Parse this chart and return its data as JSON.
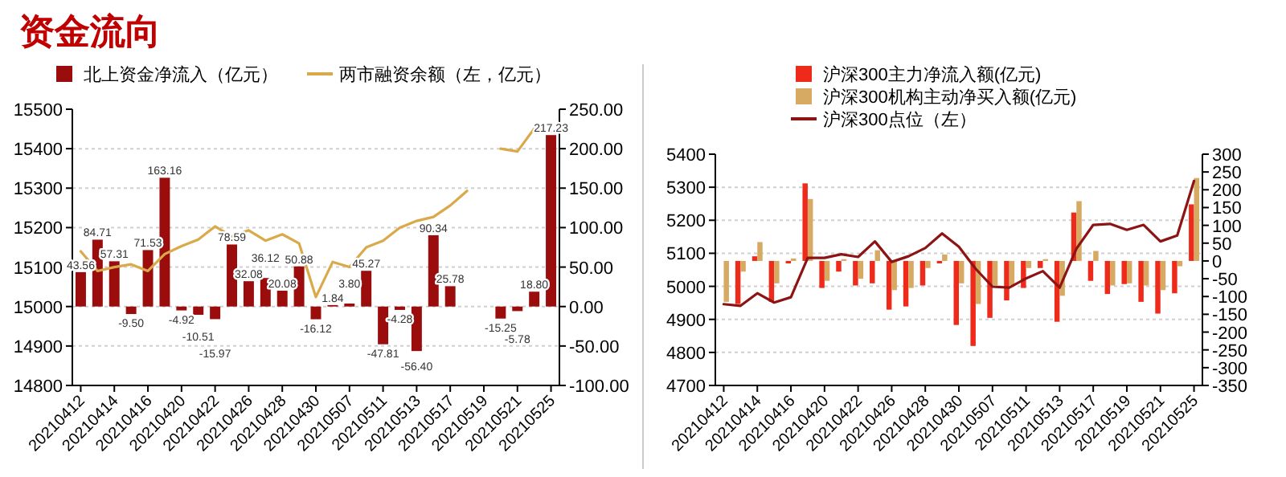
{
  "chart_data": [
    {
      "type": "bar",
      "title": "资金流向",
      "legend": "top",
      "grid": "y",
      "categories": [
        "20210412",
        null,
        "20210414",
        null,
        "20210416",
        null,
        "20210420",
        null,
        "20210422",
        null,
        "20210426",
        null,
        "20210428",
        null,
        "20210430",
        null,
        "20210507",
        null,
        "20210511",
        null,
        "20210513",
        null,
        "20210517",
        null,
        "20210519",
        null,
        "20210521",
        null,
        "20210525"
      ],
      "ylim": [
        14800,
        15500
      ],
      "yticks": [
        14800,
        14900,
        15000,
        15100,
        15200,
        15300,
        15400,
        15500
      ],
      "y2lim": [
        -100,
        250
      ],
      "y2ticks": [
        {
          "value": -100,
          "label": "-100.00"
        },
        {
          "value": -50,
          "label": "-50.00"
        },
        {
          "value": 0,
          "label": "0.00"
        },
        {
          "value": 50,
          "label": "50.00"
        },
        {
          "value": 100,
          "label": "100.00"
        },
        {
          "value": 150,
          "label": "150.00"
        },
        {
          "value": 200,
          "label": "200.00"
        },
        {
          "value": 250,
          "label": "250.00"
        }
      ],
      "series": [
        {
          "name": "北上资金净流入（亿元）",
          "axis": "y2",
          "color": "#9b0d0d",
          "values": [
            43.56,
            84.71,
            57.31,
            -9.5,
            71.53,
            163.16,
            -4.92,
            -10.51,
            -15.97,
            78.59,
            32.08,
            36.12,
            20.08,
            50.88,
            -16.12,
            1.84,
            3.8,
            45.27,
            -47.81,
            -4.28,
            -56.4,
            90.34,
            25.78,
            null,
            null,
            -15.25,
            -5.78,
            18.8,
            217.23
          ],
          "value_labels": [
            "43.56",
            "84.71",
            "57.31",
            "-9.50",
            "71.53",
            "163.16",
            "-4.92",
            "-10.51",
            "-15.97",
            "78.59",
            "32.08",
            "36.12",
            "20.08",
            "50.88",
            "-16.12",
            "1.84",
            "3.80",
            "45.27",
            "-47.81",
            "-4.28",
            "-56.40",
            "90.34",
            "25.78",
            null,
            null,
            "-15.25",
            "-5.78",
            "18.80",
            "217.23"
          ]
        },
        {
          "name": "两市融资余额（左，亿元）",
          "type": "line",
          "color": "#d9a94a",
          "values": [
            15140,
            15090,
            15100,
            15107,
            15090,
            15133,
            15153,
            15170,
            15203,
            15177,
            15193,
            15167,
            15183,
            15160,
            15024,
            15113,
            15100,
            15150,
            15167,
            15200,
            15217,
            15227,
            15256,
            15293,
            null,
            15400,
            15393,
            15451,
            15443
          ]
        }
      ]
    },
    {
      "type": "bar",
      "legend": "top",
      "grid": "y",
      "categories": [
        "20210412",
        null,
        "20210414",
        null,
        "20210416",
        null,
        "20210420",
        null,
        "20210422",
        null,
        "20210426",
        null,
        "20210428",
        null,
        "20210430",
        null,
        "20210507",
        null,
        "20210511",
        null,
        "20210513",
        null,
        "20210517",
        null,
        "20210519",
        null,
        "20210521",
        null,
        "20210525"
      ],
      "ylim": [
        4700,
        5400
      ],
      "yticks": [
        4700,
        4800,
        4900,
        5000,
        5100,
        5200,
        5300,
        5400
      ],
      "y2lim": [
        -350,
        300
      ],
      "y2ticks": [
        -350,
        -300,
        -250,
        -200,
        -150,
        -100,
        -50,
        0,
        50,
        100,
        150,
        200,
        250,
        300
      ],
      "series": [
        {
          "name": "沪深300主力净流入额(亿元)",
          "axis": "y2",
          "color": "#ee2a1b",
          "values": [
            null,
            -121,
            13,
            -115,
            -7,
            218,
            -76,
            -30,
            -69,
            -63,
            -137,
            -128,
            -69,
            -7,
            -180,
            -239,
            -160,
            -111,
            -76,
            -20,
            -171,
            136,
            -56,
            -93,
            -65,
            -115,
            -148,
            -91,
            159
          ]
        },
        {
          "name": "沪深300机构主动净买入额(亿元)",
          "axis": "y2",
          "color": "#d6aa62",
          "values": [
            -115,
            -30,
            53,
            -63,
            7,
            174,
            -56,
            5,
            -50,
            30,
            -82,
            -76,
            -20,
            18,
            -63,
            -121,
            -69,
            -69,
            -20,
            5,
            -98,
            168,
            28,
            -69,
            -63,
            -69,
            -82,
            -15,
            233
          ]
        },
        {
          "name": "沪深300点位（左）",
          "type": "line",
          "color": "#8c1414",
          "values": [
            4946,
            4941,
            4979,
            4951,
            4967,
            5086,
            5086,
            5097,
            5089,
            5136,
            5074,
            5091,
            5116,
            5160,
            5120,
            5053,
            4999,
            4996,
            5024,
            5046,
            4996,
            5114,
            5186,
            5189,
            5171,
            5186,
            5136,
            5154,
            5319
          ]
        }
      ]
    }
  ]
}
